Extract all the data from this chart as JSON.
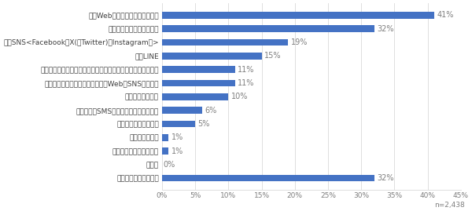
{
  "categories": [
    "あてはまるものはない",
    "その他",
    "企業の担当者による訪問",
    "企業からの電話",
    "インフルエンサー経由",
    "企業からのSMS（ショートメッセージ）",
    "企業からの郵送物",
    "企業広告（新聞、雑誌、ラジオ、Web、SNS広告等）",
    "公式アプリ（スマートフォンのアプリケーション）からの通知",
    "公式LINE",
    "公式SNS<Facebook、X(旧Twitter)、Instagram等>",
    "企業からのメールマガジン",
    "公式Webサイト（ホームページ）"
  ],
  "values": [
    32,
    0,
    1,
    1,
    5,
    6,
    10,
    11,
    11,
    15,
    19,
    32,
    41
  ],
  "bar_color": "#4472c4",
  "value_label_color": "#7f7f7f",
  "tick_label_color": "#7f7f7f",
  "background_color": "#ffffff",
  "grid_color": "#d9d9d9",
  "xlim": [
    0,
    45
  ],
  "xticks": [
    0,
    5,
    10,
    15,
    20,
    25,
    30,
    35,
    40,
    45
  ],
  "xtick_labels": [
    "0%",
    "5%",
    "10%",
    "15%",
    "20%",
    "25%",
    "30%",
    "35%",
    "40%",
    "45%"
  ],
  "note": "n=2,438",
  "bar_height": 0.5,
  "figsize": [
    6.0,
    2.69
  ],
  "dpi": 100,
  "label_fontsize": 6.5,
  "value_fontsize": 7.0,
  "tick_fontsize": 6.5
}
